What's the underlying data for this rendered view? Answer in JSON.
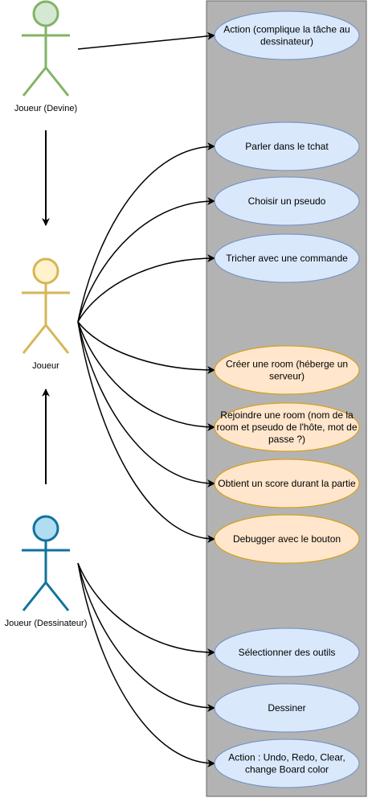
{
  "diagram": {
    "type": "use-case",
    "system_boundary_color": "#b3b3b3",
    "actors": [
      {
        "id": "devine",
        "label": "Joueur (Devine)",
        "stroke": "#82b366",
        "fill": "#d5e8d4"
      },
      {
        "id": "joueur",
        "label": "Joueur",
        "stroke": "#d6b656",
        "fill": "#fff2cc"
      },
      {
        "id": "dessinateur",
        "label": "Joueur (Dessinateur)",
        "stroke": "#10739e",
        "fill": "#b1ddf0"
      }
    ],
    "use_cases": [
      {
        "id": "uc1",
        "lines": [
          "Action (complique la tâche au",
          "dessinateur)"
        ],
        "style": "blue",
        "actor": "devine"
      },
      {
        "id": "uc2",
        "lines": [
          "Parler dans le tchat"
        ],
        "style": "blue",
        "actor": "joueur"
      },
      {
        "id": "uc3",
        "lines": [
          "Choisir un pseudo"
        ],
        "style": "blue",
        "actor": "joueur"
      },
      {
        "id": "uc4",
        "lines": [
          "Tricher avec une commande"
        ],
        "style": "blue",
        "actor": "joueur"
      },
      {
        "id": "uc5",
        "lines": [
          "Créer une room (héberge un",
          "serveur)"
        ],
        "style": "orange",
        "actor": "joueur"
      },
      {
        "id": "uc6",
        "lines": [
          "Rejoindre une room (nom de la",
          "room et pseudo de l'hôte, mot de",
          "passe ?)"
        ],
        "style": "orange",
        "actor": "joueur"
      },
      {
        "id": "uc7",
        "lines": [
          "Obtient un score durant la partie"
        ],
        "style": "orange",
        "actor": "joueur"
      },
      {
        "id": "uc8",
        "lines": [
          "Debugger avec le bouton"
        ],
        "style": "orange",
        "actor": "joueur"
      },
      {
        "id": "uc9",
        "lines": [
          "Sélectionner des outils"
        ],
        "style": "blue",
        "actor": "dessinateur"
      },
      {
        "id": "uc10",
        "lines": [
          "Dessiner"
        ],
        "style": "blue",
        "actor": "dessinateur"
      },
      {
        "id": "uc11",
        "lines": [
          "Action : Undo, Redo, Clear,",
          "change Board color"
        ],
        "style": "blue",
        "actor": "dessinateur"
      }
    ],
    "generalizations": [
      {
        "from": "devine",
        "to": "joueur"
      },
      {
        "from": "dessinateur",
        "to": "joueur"
      }
    ],
    "styles": {
      "blue": {
        "fill": "#dae8fc",
        "stroke": "#6c8ebf"
      },
      "orange": {
        "fill": "#ffe6cc",
        "stroke": "#d79b00"
      }
    }
  }
}
